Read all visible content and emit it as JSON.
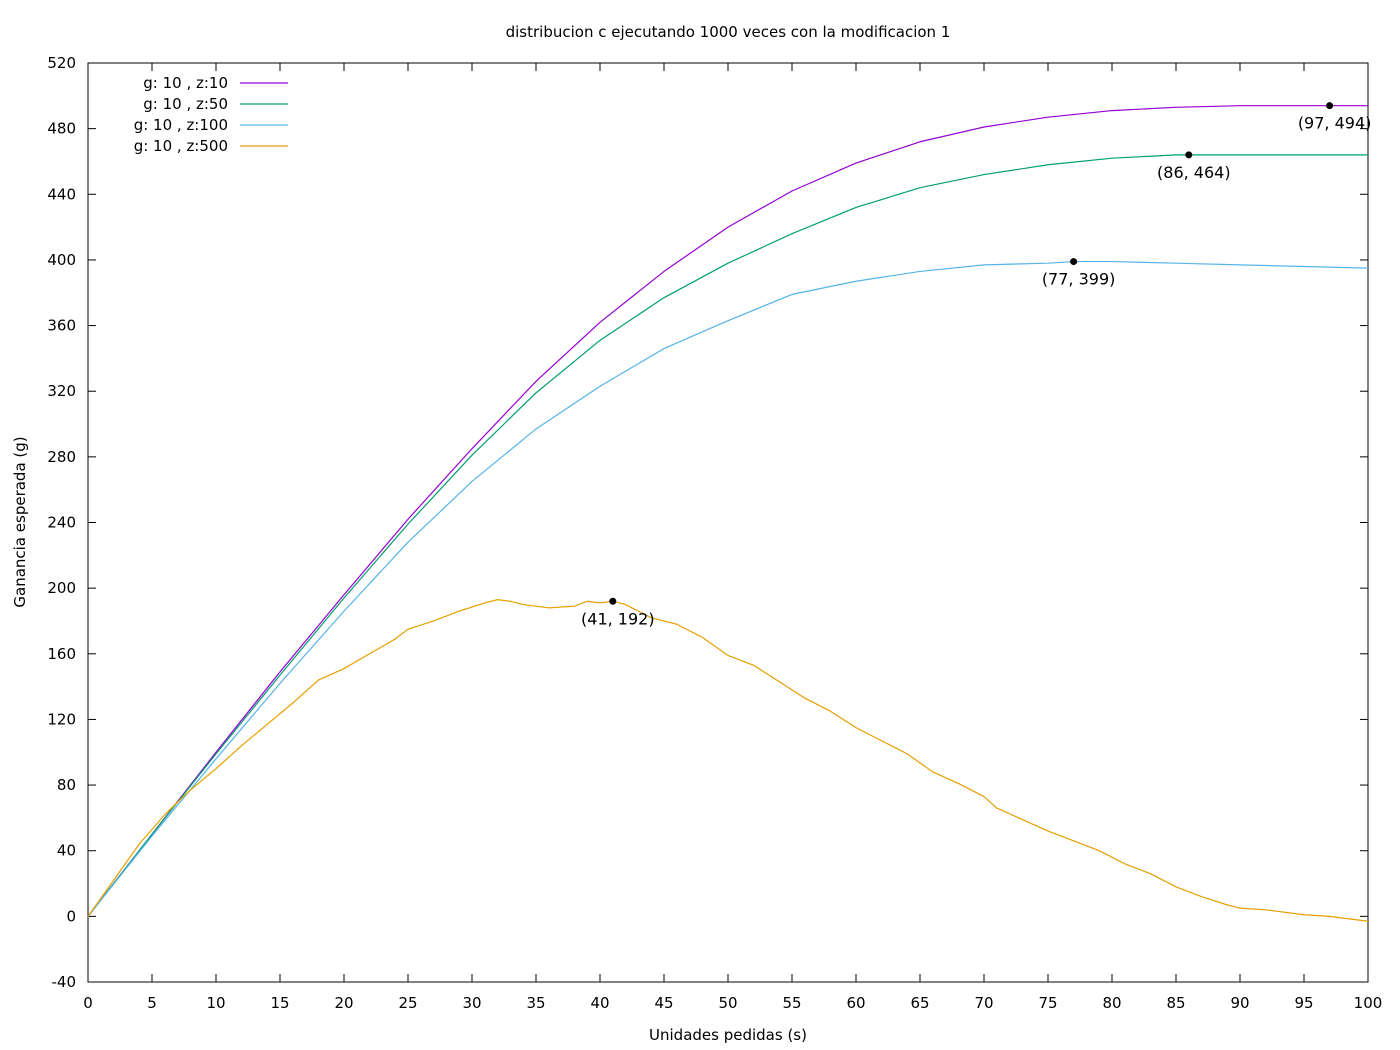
{
  "chart_data": {
    "type": "line",
    "title": "distribucion c ejecutando 1000 veces con la modificacion 1",
    "xlabel": "Unidades pedidas (s)",
    "ylabel": "Ganancia esperada (g)",
    "xlim": [
      0,
      100
    ],
    "ylim": [
      -40,
      520
    ],
    "xticks": [
      0,
      5,
      10,
      15,
      20,
      25,
      30,
      35,
      40,
      45,
      50,
      55,
      60,
      65,
      70,
      75,
      80,
      85,
      90,
      95,
      100
    ],
    "yticks": [
      -40,
      0,
      40,
      80,
      120,
      160,
      200,
      240,
      280,
      320,
      360,
      400,
      440,
      480,
      520
    ],
    "grid": false,
    "legend_position": "top-left",
    "series": [
      {
        "name": "g: 10 , z:10",
        "color": "#9400d3",
        "x": [
          0,
          5,
          10,
          15,
          20,
          25,
          30,
          35,
          40,
          45,
          50,
          55,
          60,
          65,
          70,
          75,
          80,
          85,
          90,
          95,
          97,
          100
        ],
        "y": [
          0,
          50,
          100,
          149,
          196,
          242,
          285,
          326,
          362,
          393,
          420,
          442,
          459,
          472,
          481,
          487,
          491,
          493,
          494,
          494,
          494,
          494
        ]
      },
      {
        "name": "g: 10 , z:50",
        "color": "#009e73",
        "x": [
          0,
          5,
          10,
          15,
          20,
          25,
          30,
          35,
          40,
          45,
          50,
          55,
          60,
          65,
          70,
          75,
          80,
          85,
          86,
          90,
          95,
          100
        ],
        "y": [
          0,
          50,
          99,
          147,
          194,
          239,
          281,
          319,
          351,
          377,
          398,
          416,
          432,
          444,
          452,
          458,
          462,
          464,
          464,
          464,
          464,
          464
        ]
      },
      {
        "name": "g: 10 , z:100",
        "color": "#56b4e9",
        "x": [
          0,
          5,
          10,
          15,
          20,
          25,
          30,
          35,
          40,
          45,
          50,
          55,
          60,
          65,
          70,
          75,
          77,
          80,
          85,
          90,
          95,
          100
        ],
        "y": [
          0,
          49,
          96,
          142,
          186,
          228,
          265,
          297,
          323,
          346,
          363,
          379,
          387,
          393,
          397,
          398,
          399,
          399,
          398,
          397,
          396,
          395
        ]
      },
      {
        "name": "g: 10 , z:500",
        "color": "#e69f00",
        "x": [
          0,
          2,
          4,
          6,
          8,
          10,
          12,
          14,
          16,
          18,
          20,
          22,
          24,
          25,
          27,
          29,
          31,
          32,
          33,
          34,
          35,
          36,
          38,
          39,
          40,
          41,
          42,
          43,
          44,
          46,
          48,
          50,
          52,
          54,
          56,
          58,
          60,
          62,
          64,
          66,
          68,
          70,
          71,
          73,
          75,
          77,
          79,
          81,
          83,
          85,
          87,
          89,
          90,
          92,
          93,
          95,
          97,
          98,
          100
        ],
        "y": [
          0,
          22,
          44,
          62,
          77,
          90,
          104,
          117,
          130,
          144,
          151,
          160,
          169,
          175,
          180,
          186,
          191,
          193,
          192,
          190,
          189,
          188,
          189,
          192,
          191,
          192,
          190,
          186,
          182,
          178,
          170,
          159,
          153,
          143,
          133,
          125,
          115,
          107,
          99,
          88,
          81,
          73,
          66,
          59,
          52,
          46,
          40,
          32,
          26,
          18,
          12,
          7,
          5,
          4,
          3,
          1,
          0,
          -1,
          -3
        ]
      }
    ],
    "annotations": [
      {
        "x": 97,
        "y": 494,
        "label": "(97, 494)"
      },
      {
        "x": 86,
        "y": 464,
        "label": "(86, 464)"
      },
      {
        "x": 77,
        "y": 399,
        "label": "(77, 399)"
      },
      {
        "x": 41,
        "y": 192,
        "label": "(41, 192)"
      }
    ]
  }
}
